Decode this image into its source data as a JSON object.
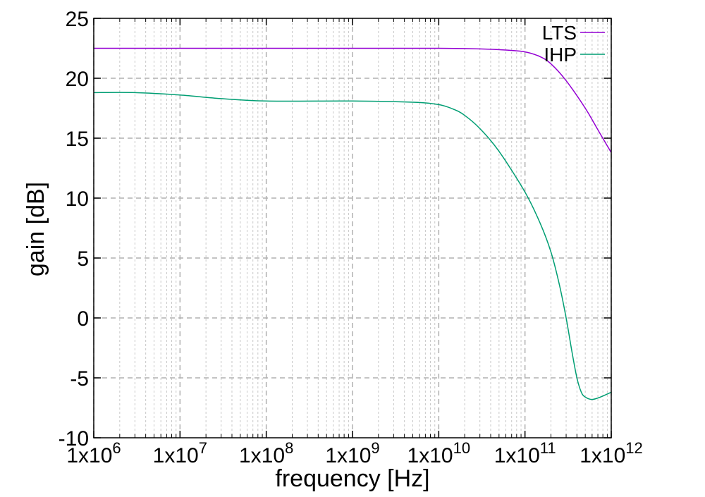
{
  "chart_data": {
    "type": "line",
    "xlabel": "frequency [Hz]",
    "ylabel": "gain [dB]",
    "x_scale": "log",
    "xlim": [
      1000000,
      1000000000000
    ],
    "ylim": [
      -10,
      25
    ],
    "x_ticks": [
      {
        "value": 1000000,
        "mantissa": "1x10",
        "exponent": "6"
      },
      {
        "value": 10000000,
        "mantissa": "1x10",
        "exponent": "7"
      },
      {
        "value": 100000000,
        "mantissa": "1x10",
        "exponent": "8"
      },
      {
        "value": 1000000000,
        "mantissa": "1x10",
        "exponent": "9"
      },
      {
        "value": 10000000000,
        "mantissa": "1x10",
        "exponent": "10"
      },
      {
        "value": 100000000000,
        "mantissa": "1x10",
        "exponent": "11"
      },
      {
        "value": 1000000000000,
        "mantissa": "1x10",
        "exponent": "12"
      }
    ],
    "y_ticks": [
      {
        "value": -10,
        "label": "-10"
      },
      {
        "value": -5,
        "label": "-5"
      },
      {
        "value": 0,
        "label": "0"
      },
      {
        "value": 5,
        "label": "5"
      },
      {
        "value": 10,
        "label": "10"
      },
      {
        "value": 15,
        "label": "15"
      },
      {
        "value": 20,
        "label": "20"
      },
      {
        "value": 25,
        "label": "25"
      }
    ],
    "grid": true,
    "legend_position": "top-right",
    "series": [
      {
        "name": "LTS",
        "color": "#9400d3",
        "points": [
          [
            1000000,
            22.5
          ],
          [
            10000000,
            22.5
          ],
          [
            100000000,
            22.5
          ],
          [
            1000000000,
            22.5
          ],
          [
            10000000000,
            22.5
          ],
          [
            30000000000,
            22.45
          ],
          [
            60000000000,
            22.35
          ],
          [
            100000000000,
            22.2
          ],
          [
            150000000000,
            21.8
          ],
          [
            200000000000,
            21.2
          ],
          [
            300000000000,
            19.8
          ],
          [
            500000000000,
            17.5
          ],
          [
            700000000000,
            15.7
          ],
          [
            1000000000000,
            13.8
          ]
        ]
      },
      {
        "name": "IHP",
        "color": "#009e73",
        "points": [
          [
            1000000,
            18.8
          ],
          [
            3000000,
            18.8
          ],
          [
            10000000,
            18.6
          ],
          [
            30000000,
            18.3
          ],
          [
            100000000,
            18.1
          ],
          [
            1000000000,
            18.1
          ],
          [
            5000000000,
            18.0
          ],
          [
            10000000000,
            17.8
          ],
          [
            15000000000,
            17.4
          ],
          [
            20000000000,
            16.9
          ],
          [
            30000000000,
            15.8
          ],
          [
            50000000000,
            13.9
          ],
          [
            100000000000,
            10.5
          ],
          [
            150000000000,
            7.9
          ],
          [
            200000000000,
            5.5
          ],
          [
            250000000000,
            2.8
          ],
          [
            300000000000,
            0.0
          ],
          [
            350000000000,
            -2.8
          ],
          [
            400000000000,
            -5.0
          ],
          [
            450000000000,
            -6.2
          ],
          [
            500000000000,
            -6.6
          ],
          [
            600000000000,
            -6.8
          ],
          [
            750000000000,
            -6.6
          ],
          [
            1000000000000,
            -6.2
          ]
        ]
      }
    ]
  }
}
